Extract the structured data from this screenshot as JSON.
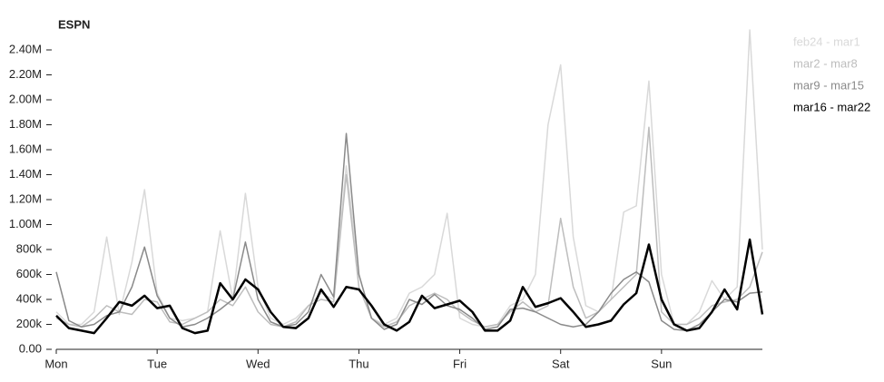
{
  "chart_data": {
    "type": "line",
    "title": "ESPN",
    "x": [
      0,
      3,
      6,
      9,
      12,
      15,
      18,
      21,
      24,
      27,
      30,
      33,
      36,
      39,
      42,
      45,
      48,
      51,
      54,
      57,
      60,
      63,
      66,
      69,
      72,
      75,
      78,
      81,
      84,
      87,
      90,
      93,
      96,
      99,
      102,
      105,
      108,
      111,
      114,
      117,
      120,
      123,
      126,
      129,
      132,
      135,
      138,
      141,
      144,
      147,
      150,
      153,
      156,
      159,
      162,
      165,
      168
    ],
    "xlim": [
      0,
      168
    ],
    "xticks": [
      {
        "value": 0,
        "label": "Mon"
      },
      {
        "value": 24,
        "label": "Tue"
      },
      {
        "value": 48,
        "label": "Wed"
      },
      {
        "value": 72,
        "label": "Thu"
      },
      {
        "value": 96,
        "label": "Fri"
      },
      {
        "value": 120,
        "label": "Sat"
      },
      {
        "value": 144,
        "label": "Sun"
      }
    ],
    "ylim": [
      0,
      2400000
    ],
    "yticks": [
      {
        "value": 0,
        "label": "0.00"
      },
      {
        "value": 200000,
        "label": "200k"
      },
      {
        "value": 400000,
        "label": "400k"
      },
      {
        "value": 600000,
        "label": "600k"
      },
      {
        "value": 800000,
        "label": "800k"
      },
      {
        "value": 1000000,
        "label": "1.00M"
      },
      {
        "value": 1200000,
        "label": "1.20M"
      },
      {
        "value": 1400000,
        "label": "1.40M"
      },
      {
        "value": 1600000,
        "label": "1.60M"
      },
      {
        "value": 1800000,
        "label": "1.80M"
      },
      {
        "value": 2000000,
        "label": "2.00M"
      },
      {
        "value": 2200000,
        "label": "2.20M"
      },
      {
        "value": 2400000,
        "label": "2.40M"
      }
    ],
    "series": [
      {
        "name": "feb24 - mar1",
        "color": "#d9d9d9",
        "values": [
          300000,
          200000,
          200000,
          300000,
          900000,
          280000,
          700000,
          1280000,
          450000,
          250000,
          230000,
          250000,
          300000,
          950000,
          400000,
          1250000,
          500000,
          250000,
          200000,
          250000,
          350000,
          450000,
          400000,
          1470000,
          600000,
          250000,
          200000,
          250000,
          450000,
          500000,
          600000,
          1090000,
          250000,
          200000,
          180000,
          200000,
          350000,
          400000,
          600000,
          1800000,
          2280000,
          900000,
          350000,
          300000,
          400000,
          1100000,
          1150000,
          2150000,
          600000,
          200000,
          200000,
          300000,
          550000,
          400000,
          500000,
          2560000,
          800000
        ]
      },
      {
        "name": "mar2 - mar8",
        "color": "#bdbdbd",
        "values": [
          250000,
          200000,
          180000,
          250000,
          350000,
          300000,
          280000,
          400000,
          380000,
          220000,
          200000,
          250000,
          300000,
          400000,
          350000,
          500000,
          300000,
          200000,
          180000,
          220000,
          350000,
          400000,
          380000,
          1400000,
          500000,
          250000,
          180000,
          220000,
          350000,
          400000,
          450000,
          400000,
          300000,
          230000,
          180000,
          200000,
          300000,
          380000,
          300000,
          350000,
          1050000,
          500000,
          250000,
          300000,
          400000,
          500000,
          600000,
          1780000,
          300000,
          200000,
          200000,
          250000,
          350000,
          380000,
          400000,
          500000,
          780000
        ]
      },
      {
        "name": "mar9 - mar15",
        "color": "#8a8a8a",
        "values": [
          620000,
          230000,
          180000,
          200000,
          270000,
          300000,
          500000,
          820000,
          430000,
          250000,
          180000,
          200000,
          250000,
          320000,
          400000,
          860000,
          400000,
          220000,
          180000,
          200000,
          300000,
          600000,
          420000,
          1730000,
          600000,
          250000,
          160000,
          200000,
          400000,
          360000,
          440000,
          350000,
          320000,
          250000,
          160000,
          180000,
          320000,
          330000,
          300000,
          250000,
          200000,
          180000,
          200000,
          300000,
          450000,
          560000,
          620000,
          540000,
          230000,
          160000,
          150000,
          200000,
          300000,
          400000,
          380000,
          450000,
          460000
        ]
      },
      {
        "name": "mar16 - mar22",
        "color": "#000000",
        "values": [
          270000,
          170000,
          150000,
          130000,
          250000,
          380000,
          350000,
          430000,
          330000,
          350000,
          170000,
          130000,
          150000,
          530000,
          400000,
          560000,
          480000,
          300000,
          180000,
          170000,
          250000,
          480000,
          340000,
          500000,
          480000,
          350000,
          200000,
          150000,
          220000,
          430000,
          330000,
          360000,
          390000,
          300000,
          150000,
          150000,
          230000,
          500000,
          340000,
          370000,
          410000,
          300000,
          180000,
          200000,
          230000,
          360000,
          450000,
          840000,
          400000,
          200000,
          150000,
          170000,
          300000,
          480000,
          320000,
          880000,
          280000
        ]
      }
    ]
  }
}
